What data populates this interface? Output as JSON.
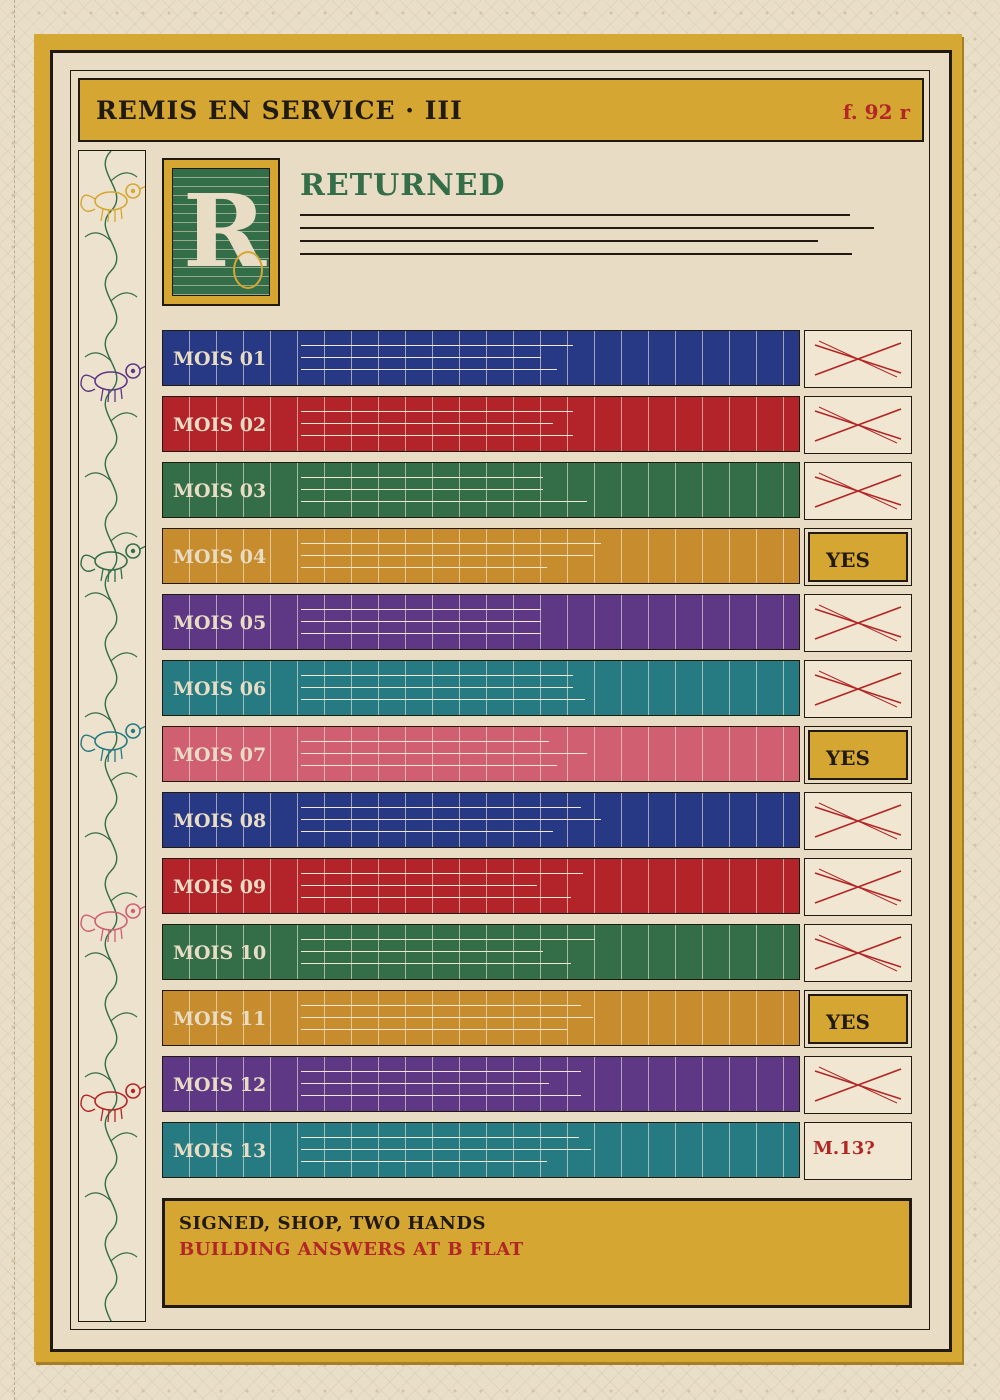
{
  "header": {
    "title": "REMIS EN SERVICE  ·  III",
    "folio": "f. 92 r"
  },
  "initial": {
    "letter": "R"
  },
  "heading": "RETURNED",
  "colors": {
    "gold": "#d5a732",
    "ink": "#211a10",
    "red": "#b22626",
    "green": "#346e48",
    "parchment": "#e8dcc5"
  },
  "months": [
    {
      "label": "MOIS 01",
      "color": "#273884",
      "mark": "cross"
    },
    {
      "label": "MOIS 02",
      "color": "#b22429",
      "mark": "cross"
    },
    {
      "label": "MOIS 03",
      "color": "#346e48",
      "mark": "cross"
    },
    {
      "label": "MOIS 04",
      "color": "#c68c2d",
      "mark": "yes",
      "text": "YES"
    },
    {
      "label": "MOIS 05",
      "color": "#5e3884",
      "mark": "cross"
    },
    {
      "label": "MOIS 06",
      "color": "#267b82",
      "mark": "cross"
    },
    {
      "label": "MOIS 07",
      "color": "#d05f72",
      "mark": "yes",
      "text": "YES"
    },
    {
      "label": "MOIS 08",
      "color": "#273884",
      "mark": "cross"
    },
    {
      "label": "MOIS 09",
      "color": "#b22429",
      "mark": "cross"
    },
    {
      "label": "MOIS 10",
      "color": "#346e48",
      "mark": "cross"
    },
    {
      "label": "MOIS 11",
      "color": "#c68c2d",
      "mark": "yes",
      "text": "YES"
    },
    {
      "label": "MOIS 12",
      "color": "#5e3884",
      "mark": "cross"
    },
    {
      "label": "MOIS 13",
      "color": "#267b82",
      "mark": "note",
      "text": "M.13?"
    }
  ],
  "footer": {
    "line1": "SIGNED, SHOP, TWO HANDS",
    "line2": "BUILDING ANSWERS AT B FLAT"
  }
}
